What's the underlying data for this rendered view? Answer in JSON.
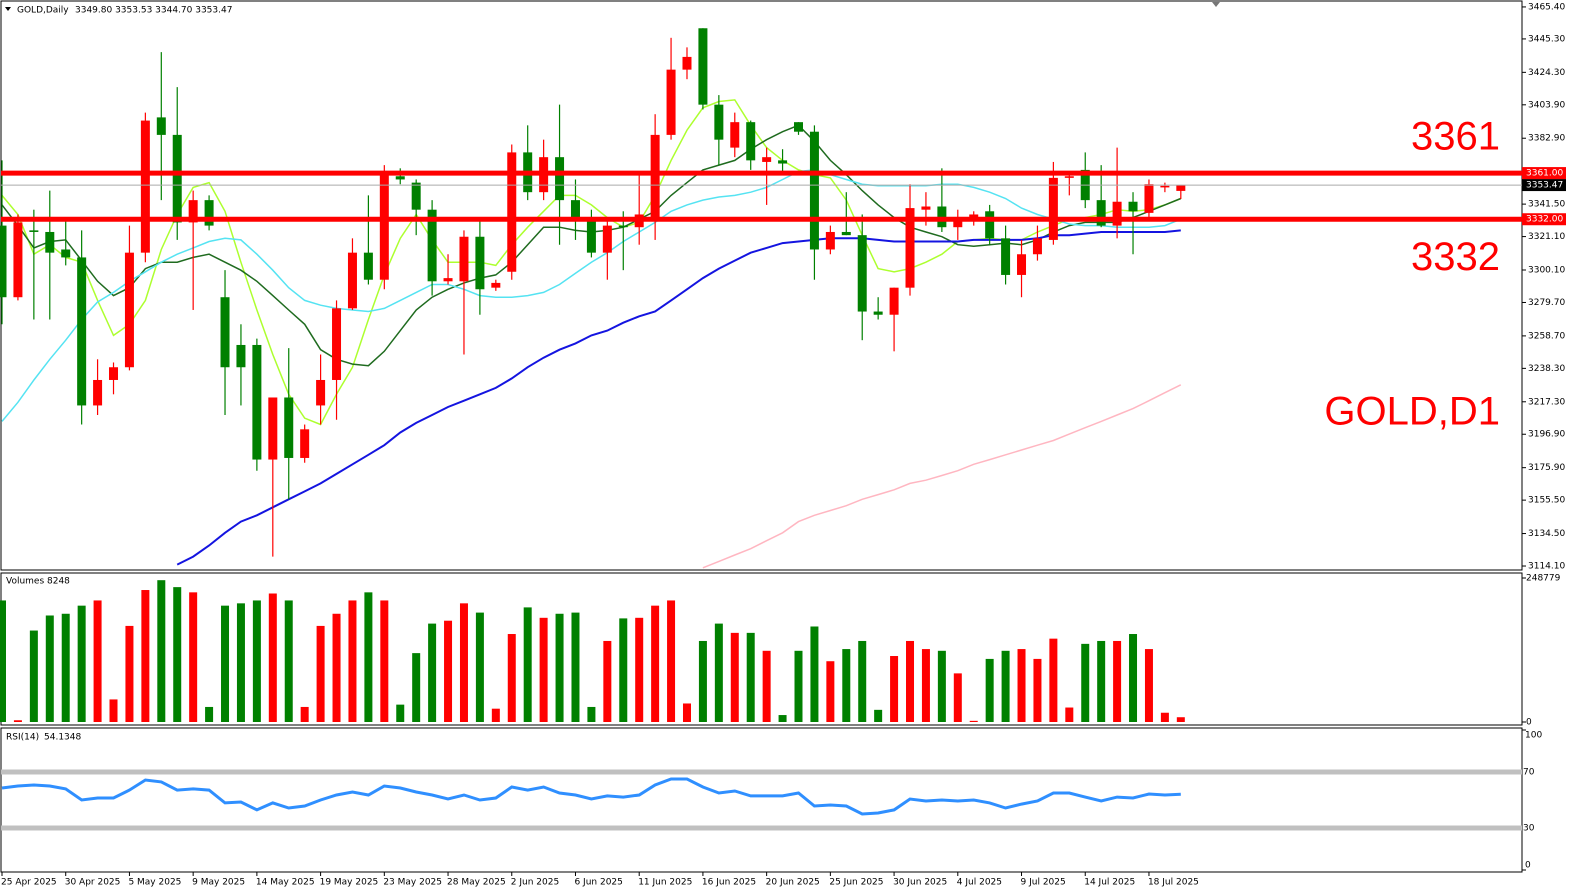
{
  "chart_data": [
    {
      "type": "candlestick",
      "title": "GOLD,Daily",
      "ohlc_text": "3349.80 3353.53 3344.70 3353.47",
      "annotation": "GOLD,D1",
      "categories": [
        "25 Apr 2025",
        null,
        null,
        null,
        "30 Apr 2025",
        null,
        null,
        null,
        "5 May 2025",
        null,
        null,
        null,
        "9 May 2025",
        null,
        null,
        null,
        "14 May 2025",
        null,
        null,
        null,
        "19 May 2025",
        null,
        null,
        null,
        "23 May 2025",
        null,
        null,
        null,
        "28 May 2025",
        null,
        null,
        null,
        "2 Jun 2025",
        null,
        null,
        null,
        "6 Jun 2025",
        null,
        null,
        null,
        "11 Jun 2025",
        null,
        null,
        null,
        "16 Jun 2025",
        null,
        null,
        null,
        "20 Jun 2025",
        null,
        null,
        null,
        "25 Jun 2025",
        null,
        null,
        null,
        "30 Jun 2025",
        null,
        null,
        null,
        "4 Jul 2025",
        null,
        null,
        null,
        "9 Jul 2025",
        null,
        null,
        null,
        "14 Jul 2025",
        null,
        null,
        null,
        "18 Jul 2025",
        null,
        null
      ],
      "open": [
        3328,
        3283,
        3325,
        3324,
        3313,
        3308,
        3215,
        3231,
        3239,
        3311,
        3396,
        3385,
        3330,
        3344,
        3283,
        3253,
        3253,
        3181,
        3220,
        3182,
        3215,
        3231,
        3276,
        3311,
        3294,
        3359,
        3355,
        3338,
        3293,
        3293,
        3321,
        3289,
        3299,
        3374,
        3349,
        3371,
        3344,
        3332,
        3311,
        3328,
        3327,
        3333,
        3385,
        3426,
        3452,
        3404,
        3377,
        3393,
        3368,
        3369,
        3393,
        3387,
        3313,
        3324,
        3322,
        3274,
        3272,
        3289,
        3338,
        3340,
        3327,
        3332,
        3337,
        3320,
        3297,
        3310,
        3319,
        3358,
        3363,
        3344,
        3328,
        3343,
        3336,
        3352,
        3349.8
      ],
      "high": [
        3369,
        3335,
        3338,
        3350,
        3332,
        3325,
        3244,
        3242,
        3328,
        3399,
        3437,
        3415,
        3350,
        3347,
        3300,
        3266,
        3257,
        3220,
        3251,
        3203,
        3247,
        3281,
        3320,
        3347,
        3366,
        3364,
        3357,
        3344,
        3310,
        3325,
        3332,
        3294,
        3379,
        3391,
        3382,
        3404,
        3357,
        3338,
        3333,
        3337,
        3360,
        3398,
        3446,
        3440,
        3452,
        3410,
        3399,
        3394,
        3377,
        3376,
        3393,
        3391,
        3328,
        3349,
        3335,
        3283,
        3289,
        3354,
        3349,
        3364,
        3338,
        3337,
        3341,
        3328,
        3319,
        3328,
        3368,
        3360,
        3374,
        3366,
        3377,
        3349,
        3357,
        3355,
        3353.53
      ],
      "low": [
        3266,
        3281,
        3269,
        3269,
        3303,
        3203,
        3209,
        3222,
        3237,
        3305,
        3344,
        3319,
        3275,
        3325,
        3209,
        3215,
        3174,
        3120,
        3156,
        3179,
        3203,
        3206,
        3275,
        3291,
        3288,
        3354,
        3322,
        3284,
        3291,
        3247,
        3272,
        3287,
        3294,
        3344,
        3344,
        3316,
        3319,
        3308,
        3294,
        3300,
        3316,
        3319,
        3382,
        3420,
        3401,
        3366,
        3371,
        3363,
        3341,
        3360,
        3385,
        3294,
        3310,
        3322,
        3256,
        3269,
        3249,
        3284,
        3328,
        3324,
        3319,
        3328,
        3316,
        3291,
        3283,
        3306,
        3316,
        3347,
        3339,
        3327,
        3320,
        3310,
        3332,
        3349,
        3344.7
      ],
      "close": [
        3283,
        3330,
        3324,
        3311,
        3308,
        3215,
        3231,
        3239,
        3311,
        3394,
        3385,
        3330,
        3344,
        3328,
        3239,
        3239,
        3181,
        3220,
        3182,
        3200,
        3231,
        3276,
        3311,
        3294,
        3361,
        3357,
        3338,
        3293,
        3295,
        3321,
        3288,
        3292,
        3374,
        3349,
        3371,
        3344,
        3332,
        3311,
        3328,
        3327,
        3335,
        3385,
        3426,
        3434,
        3404,
        3382,
        3393,
        3369,
        3371,
        3367,
        3387,
        3313,
        3324,
        3322,
        3274,
        3272,
        3289,
        3339,
        3340,
        3327,
        3332,
        3335,
        3320,
        3297,
        3310,
        3320,
        3358,
        3359,
        3344,
        3328,
        3343,
        3337,
        3354,
        3353,
        3353.47
      ],
      "up_color": "#ff0000",
      "down_color": "#008000",
      "moving_averages": [
        {
          "color": "#adff2f",
          "values": [
            3347,
            3335,
            3310,
            3316,
            3308,
            3305,
            3281,
            3259,
            3266,
            3281,
            3313,
            3335,
            3352,
            3355,
            3337,
            3305,
            3275,
            3247,
            3222,
            3207,
            3203,
            3222,
            3239,
            3269,
            3297,
            3320,
            3335,
            3319,
            3305,
            3305,
            3305,
            3303,
            3316,
            3327,
            3337,
            3347,
            3347,
            3341,
            3333,
            3327,
            3330,
            3347,
            3369,
            3388,
            3402,
            3406,
            3407,
            3391,
            3377,
            3369,
            3363,
            3360,
            3358,
            3344,
            3322,
            3301,
            3299,
            3301,
            3305,
            3310,
            3318,
            3319,
            3320,
            3319,
            3319,
            3324,
            3328,
            3332,
            3333,
            3335,
            3338,
            3337,
            3338,
            3341,
            3345
          ]
        },
        {
          "color": "#1f6b1f",
          "values": [
            3341,
            3328,
            3314,
            3318,
            3319,
            3306,
            3293,
            3284,
            3289,
            3301,
            3305,
            3305,
            3308,
            3310,
            3305,
            3300,
            3293,
            3284,
            3275,
            3266,
            3250,
            3244,
            3241,
            3240,
            3249,
            3262,
            3275,
            3283,
            3288,
            3292,
            3295,
            3297,
            3305,
            3316,
            3327,
            3327,
            3325,
            3324,
            3325,
            3327,
            3332,
            3337,
            3347,
            3355,
            3363,
            3366,
            3369,
            3376,
            3382,
            3387,
            3391,
            3381,
            3369,
            3360,
            3350,
            3341,
            3333,
            3327,
            3324,
            3321,
            3316,
            3315,
            3316,
            3317,
            3316,
            3319,
            3324,
            3328,
            3330,
            3330,
            3330,
            3333,
            3337,
            3341,
            3345
          ]
        },
        {
          "color": "#55e3f2",
          "values": [
            3205,
            3217,
            3231,
            3244,
            3256,
            3269,
            3280,
            3286,
            3293,
            3299,
            3305,
            3310,
            3314,
            3318,
            3320,
            3319,
            3310,
            3300,
            3289,
            3281,
            3278,
            3276,
            3275,
            3274,
            3276,
            3281,
            3286,
            3291,
            3291,
            3288,
            3284,
            3283,
            3283,
            3284,
            3286,
            3291,
            3298,
            3305,
            3311,
            3318,
            3324,
            3330,
            3337,
            3341,
            3344,
            3346,
            3347,
            3349,
            3352,
            3357,
            3362,
            3363,
            3360,
            3357,
            3354,
            3353,
            3353,
            3353,
            3353,
            3354,
            3354,
            3352,
            3349,
            3345,
            3339,
            3335,
            3332,
            3329,
            3328,
            3328,
            3327,
            3327,
            3327,
            3328,
            3332
          ]
        },
        {
          "color": "#1414e0",
          "values": [
            null,
            null,
            null,
            null,
            null,
            null,
            null,
            null,
            null,
            null,
            null,
            3115,
            3120,
            3127,
            3135,
            3142,
            3146,
            3151,
            3156,
            3161,
            3166,
            3172,
            3178,
            3184,
            3190,
            3198,
            3204,
            3209,
            3214,
            3218,
            3222,
            3226,
            3232,
            3239,
            3245,
            3250,
            3254,
            3259,
            3262,
            3267,
            3271,
            3274,
            3281,
            3288,
            3295,
            3301,
            3306,
            3311,
            3314,
            3317,
            3318,
            3319,
            3320,
            3320,
            3320,
            3319,
            3318,
            3318,
            3318,
            3318,
            3318,
            3319,
            3319,
            3319,
            3319,
            3320,
            3322,
            3322,
            3323,
            3324,
            3324,
            3324,
            3324,
            3324,
            3325
          ]
        },
        {
          "color": "#ffb6c1",
          "values": [
            null,
            null,
            null,
            null,
            null,
            null,
            null,
            null,
            null,
            null,
            null,
            null,
            null,
            null,
            null,
            null,
            null,
            null,
            null,
            null,
            null,
            null,
            null,
            null,
            null,
            null,
            null,
            null,
            null,
            null,
            null,
            null,
            null,
            null,
            null,
            null,
            null,
            null,
            null,
            null,
            null,
            null,
            null,
            null,
            3113,
            3117,
            3121,
            3125,
            3130,
            3135,
            3142,
            3146,
            3149,
            3152,
            3156,
            3159,
            3162,
            3166,
            3168,
            3171,
            3174,
            3178,
            3181,
            3184,
            3187,
            3190,
            3193,
            3197,
            3201,
            3205,
            3209,
            3213,
            3218,
            3223,
            3228
          ]
        }
      ],
      "levels": [
        {
          "value": 3361,
          "label": "3361.00",
          "text": "3361",
          "color": "#ff0000"
        },
        {
          "value": 3332,
          "label": "3332.00",
          "text": "3332",
          "color": "#ff0000"
        }
      ],
      "last_price": 3353.47,
      "ylim": [
        3111.6,
        3468.5
      ],
      "yticks": [
        {
          "value": 3465.4,
          "label": "3465.40"
        },
        {
          "value": 3445.3,
          "label": "3445.30"
        },
        {
          "value": 3424.3,
          "label": "3424.30"
        },
        {
          "value": 3403.9,
          "label": "3403.90"
        },
        {
          "value": 3382.9,
          "label": "3382.90"
        },
        {
          "value": 3341.5,
          "label": "3341.50"
        },
        {
          "value": 3321.1,
          "label": "3321.10"
        },
        {
          "value": 3300.1,
          "label": "3300.10"
        },
        {
          "value": 3279.7,
          "label": "3279.70"
        },
        {
          "value": 3258.7,
          "label": "3258.70"
        },
        {
          "value": 3238.3,
          "label": "3238.30"
        },
        {
          "value": 3217.3,
          "label": "3217.30"
        },
        {
          "value": 3196.9,
          "label": "3196.90"
        },
        {
          "value": 3175.9,
          "label": "3175.90"
        },
        {
          "value": 3155.5,
          "label": "3155.50"
        },
        {
          "value": 3134.5,
          "label": "3134.50"
        },
        {
          "value": 3114.1,
          "label": "3114.10"
        }
      ]
    },
    {
      "type": "volume",
      "title": "Volumes",
      "values": [
        210000,
        3000,
        158000,
        184000,
        187000,
        201000,
        210000,
        39000,
        166000,
        228000,
        245000,
        233000,
        224000,
        26000,
        201000,
        205000,
        210000,
        222000,
        210000,
        26000,
        166000,
        187000,
        210000,
        224000,
        210000,
        30000,
        119000,
        170000,
        175000,
        205000,
        189000,
        23000,
        152000,
        198000,
        180000,
        187000,
        189000,
        26000,
        140000,
        179000,
        180000,
        201000,
        210000,
        32000,
        140000,
        170000,
        154000,
        154000,
        123000,
        12000,
        123000,
        165000,
        105000,
        126000,
        140000,
        21000,
        114000,
        140000,
        126000,
        123000,
        84000,
        2000,
        109000,
        123000,
        126000,
        109000,
        144000,
        25000,
        135000,
        140000,
        140000,
        152000,
        126000,
        16000,
        8248
      ],
      "ylim": [
        0,
        248779
      ],
      "yticks": [
        0,
        248779
      ]
    },
    {
      "type": "rsi",
      "title": "RSI(14)",
      "color": "#2f8fff",
      "level_color": "#c0c0c0",
      "values": [
        58.6,
        60,
        60.7,
        60,
        57.9,
        50,
        51.4,
        51.4,
        57.1,
        64.3,
        62.9,
        57.1,
        57.9,
        57.1,
        47.9,
        48.6,
        42.9,
        47.9,
        44.3,
        45.7,
        50,
        53.6,
        55.7,
        53.6,
        60,
        58.6,
        55.7,
        53.6,
        50.7,
        53.6,
        50,
        51.4,
        59.3,
        57.1,
        59.3,
        55,
        53.6,
        50.7,
        52.9,
        52.1,
        53.6,
        60.7,
        65,
        65,
        59.3,
        55,
        56.4,
        52.9,
        52.9,
        52.9,
        55,
        45.7,
        46.4,
        45.7,
        40,
        40.7,
        42.9,
        50.7,
        49.3,
        50,
        49.3,
        50,
        47.9,
        44.3,
        47.1,
        49.3,
        55,
        55,
        52.1,
        49.3,
        52.1,
        51.4,
        54.3,
        53.6,
        54.1348
      ],
      "ylim": [
        0,
        100
      ],
      "yticks": [
        0,
        30,
        70,
        100
      ],
      "levels": [
        30,
        70
      ]
    }
  ]
}
